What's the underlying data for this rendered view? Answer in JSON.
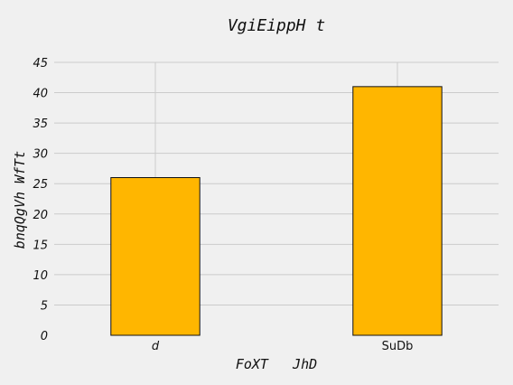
{
  "chart_data": {
    "type": "bar",
    "title": "VgiEippH t",
    "xlabel": "FoXT   JhD",
    "ylabel": "bnqQgVh WfTt",
    "categories": [
      "d",
      "SuDb"
    ],
    "values": [
      26,
      41
    ],
    "ylim": [
      0,
      45
    ],
    "yticks": [
      0,
      5,
      10,
      15,
      20,
      25,
      30,
      35,
      40,
      45
    ],
    "bar_color": "#ffb600",
    "grid": true,
    "background": "#f0f0f0"
  }
}
